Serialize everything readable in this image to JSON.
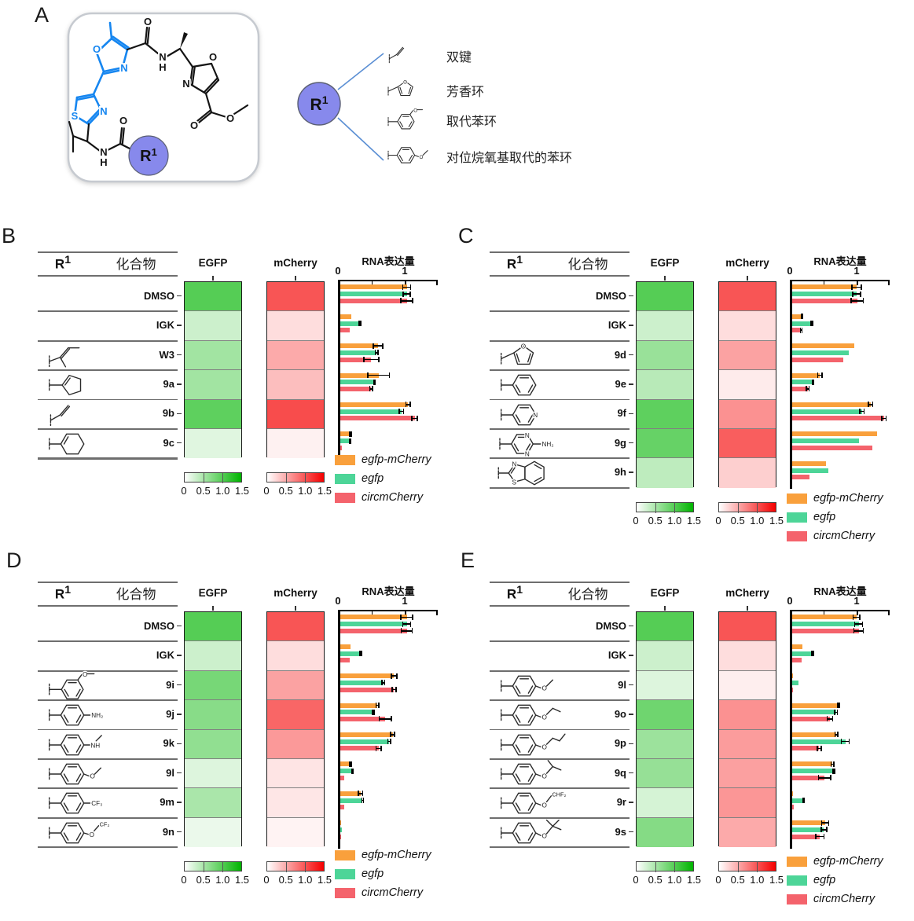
{
  "panel_a": {
    "label": "A",
    "r1_badge": "R1",
    "r1_options": [
      {
        "structure": "vinyl",
        "label": "双键"
      },
      {
        "structure": "furanyl",
        "label": "芳香环"
      },
      {
        "structure": "m-methoxyphenyl",
        "label": "取代苯环"
      },
      {
        "structure": "p-methoxyphenyl",
        "label": "对位烷氧基取代的苯环"
      }
    ]
  },
  "shared": {
    "table_headers": {
      "r1": "R1",
      "compound": "化合物"
    },
    "heatmap_headers": {
      "egfp": "EGFP",
      "mcherry": "mCherry"
    },
    "chart_title": "RNA表达量",
    "axis_tick_labels": [
      "0",
      "1"
    ],
    "colorbar_ticks": [
      "0",
      "0.5",
      "1.0",
      "1.5"
    ],
    "heat_range": [
      0,
      1.5
    ],
    "xlim": [
      0,
      1.5
    ],
    "heatmap_max_colors": {
      "egfp": "#00B400",
      "mcherry": "#F50000"
    },
    "legend": [
      {
        "series": "egfp-mCherry",
        "color": "#F9A03C"
      },
      {
        "series": "egfp",
        "color": "#4DD598"
      },
      {
        "series": "circmCherry",
        "color": "#F4636C"
      }
    ],
    "structure_atom_labels": [
      "O",
      "N",
      "S",
      "NH",
      "H",
      "NH₂",
      "CF₃",
      "CHF₂",
      "R1"
    ]
  },
  "chart_data": [
    {
      "panel": "B",
      "type": "bar",
      "categories": [
        "DMSO",
        "IGK",
        "W3",
        "9a",
        "9b",
        "9c"
      ],
      "structures": [
        null,
        null,
        "methylbutenyl",
        "cyclopentenyl",
        "vinyl",
        "cyclohexenyl"
      ],
      "heatmap": {
        "EGFP": [
          1.0,
          0.3,
          0.55,
          0.55,
          0.95,
          0.18
        ],
        "mCherry": [
          1.0,
          0.2,
          0.5,
          0.38,
          1.05,
          0.08
        ]
      },
      "series": [
        {
          "name": "egfp-mCherry",
          "values": [
            1.0,
            0.17,
            0.57,
            0.58,
            1.02,
            0.16
          ],
          "errors": [
            0.07,
            0.01,
            0.08,
            0.17,
            0.04,
            0.02
          ]
        },
        {
          "name": "egfp",
          "values": [
            1.0,
            0.3,
            0.55,
            0.52,
            0.92,
            0.15
          ],
          "errors": [
            0.06,
            0.02,
            0.03,
            0.02,
            0.04,
            0.02
          ]
        },
        {
          "name": "circmCherry",
          "values": [
            1.0,
            0.15,
            0.47,
            0.47,
            1.12,
            0.03
          ],
          "errors": [
            0.1,
            0.01,
            0.12,
            0.03,
            0.05,
            0.01
          ]
        }
      ],
      "title": "RNA表达量",
      "xlim": [
        0,
        1.5
      ]
    },
    {
      "panel": "C",
      "type": "bar",
      "categories": [
        "DMSO",
        "IGK",
        "9d",
        "9e",
        "9f",
        "9g",
        "9h"
      ],
      "structures": [
        null,
        null,
        "furanyl",
        "phenyl",
        "pyridinyl",
        "aminopyrimidinyl",
        "benzothiazolyl"
      ],
      "heatmap": {
        "EGFP": [
          1.0,
          0.3,
          0.6,
          0.42,
          0.95,
          0.9,
          0.38
        ],
        "mCherry": [
          1.0,
          0.2,
          0.55,
          0.12,
          0.65,
          0.95,
          0.28
        ]
      },
      "series": [
        {
          "name": "egfp-mCherry",
          "values": [
            0.97,
            0.15,
            0.93,
            0.42,
            1.18,
            1.28,
            0.51
          ],
          "errors": [
            0.08,
            0.02,
            0,
            0.04,
            0.04,
            0,
            0
          ]
        },
        {
          "name": "egfp",
          "values": [
            0.97,
            0.3,
            0.85,
            0.32,
            1.05,
            1.0,
            0.55
          ],
          "errors": [
            0.07,
            0.02,
            0,
            0.02,
            0.04,
            0,
            0
          ]
        },
        {
          "name": "circmCherry",
          "values": [
            0.98,
            0.14,
            0.77,
            0.24,
            1.38,
            1.2,
            0.27
          ],
          "errors": [
            0.1,
            0.02,
            0,
            0.03,
            0.04,
            0,
            0
          ]
        }
      ],
      "title": "RNA表达量",
      "xlim": [
        0,
        1.5
      ]
    },
    {
      "panel": "D",
      "type": "bar",
      "categories": [
        "DMSO",
        "IGK",
        "9i",
        "9j",
        "9k",
        "9l",
        "9m",
        "9n"
      ],
      "structures": [
        null,
        null,
        "m-methoxyphenyl",
        "p-aminophenyl",
        "p-methylaminophenyl",
        "p-methoxyphenyl",
        "p-cf3-phenyl",
        "p-ocf3-phenyl"
      ],
      "heatmap": {
        "EGFP": [
          1.0,
          0.3,
          0.8,
          0.7,
          0.65,
          0.2,
          0.5,
          0.12
        ],
        "mCherry": [
          1.0,
          0.2,
          0.55,
          0.9,
          0.6,
          0.16,
          0.15,
          0.07
        ]
      },
      "series": [
        {
          "name": "egfp-mCherry",
          "values": [
            1.0,
            0.16,
            0.81,
            0.56,
            0.79,
            0.16,
            0.31,
            0.01
          ],
          "errors": [
            0.1,
            0.01,
            0.05,
            0.03,
            0.04,
            0.02,
            0.04,
            0
          ]
        },
        {
          "name": "egfp",
          "values": [
            1.0,
            0.31,
            0.65,
            0.5,
            0.74,
            0.19,
            0.34,
            0.03
          ],
          "errors": [
            0.07,
            0.02,
            0.03,
            0.02,
            0.03,
            0.02,
            0.02,
            0.01
          ]
        },
        {
          "name": "circmCherry",
          "values": [
            1.0,
            0.15,
            0.81,
            0.68,
            0.58,
            0.06,
            0.06,
            0.01
          ],
          "errors": [
            0.09,
            0.01,
            0.04,
            0.1,
            0.05,
            0.01,
            0.01,
            0
          ]
        }
      ],
      "title": "RNA表达量",
      "xlim": [
        0,
        1.5
      ]
    },
    {
      "panel": "E",
      "type": "bar",
      "categories": [
        "DMSO",
        "IGK",
        "9l",
        "9o",
        "9p",
        "9q",
        "9r",
        "9s"
      ],
      "structures": [
        null,
        null,
        "p-methoxyphenyl",
        "p-ethoxyphenyl",
        "p-propoxyphenyl",
        "p-isopropoxyphenyl",
        "p-ochf2-phenyl",
        "p-tbutoxyphenyl"
      ],
      "heatmap": {
        "EGFP": [
          1.0,
          0.3,
          0.2,
          0.85,
          0.58,
          0.62,
          0.25,
          0.72
        ],
        "mCherry": [
          1.0,
          0.2,
          0.1,
          0.65,
          0.58,
          0.56,
          0.62,
          0.5
        ]
      },
      "series": [
        {
          "name": "egfp-mCherry",
          "values": [
            0.97,
            0.16,
            0.02,
            0.7,
            0.67,
            0.61,
            0.02,
            0.5
          ],
          "errors": [
            0.06,
            0.01,
            0,
            0.02,
            0.03,
            0.03,
            0,
            0.06
          ]
        },
        {
          "name": "egfp",
          "values": [
            1.0,
            0.31,
            0.1,
            0.66,
            0.8,
            0.63,
            0.18,
            0.48
          ],
          "errors": [
            0.07,
            0.02,
            0,
            0.03,
            0.07,
            0.02,
            0.02,
            0.05
          ]
        },
        {
          "name": "circmCherry",
          "values": [
            1.0,
            0.15,
            0.01,
            0.57,
            0.41,
            0.49,
            0.03,
            0.42
          ],
          "errors": [
            0.08,
            0.01,
            0,
            0.05,
            0.04,
            0.1,
            0.01,
            0.07
          ]
        }
      ],
      "title": "RNA表达量",
      "xlim": [
        0,
        1.5
      ]
    }
  ]
}
